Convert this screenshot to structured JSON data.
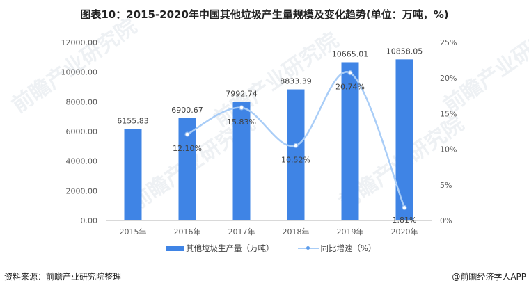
{
  "title": "图表10：2015-2020年中国其他垃圾产生量规模及变化趋势(单位：万吨，%)",
  "colors": {
    "bar": "#3f84e5",
    "line": "#a9cdf7",
    "marker_stroke": "#8fb8ee",
    "axis_text": "#595959",
    "gridline": "#d9d9d9"
  },
  "chart_data": {
    "type": "bar+line",
    "title": "图表10：2015-2020年中国其他垃圾产生量规模及变化趋势(单位：万吨，%)",
    "categories": [
      "2015年",
      "2016年",
      "2017年",
      "2018年",
      "2019年",
      "2020年"
    ],
    "series": [
      {
        "name": "其他垃圾生产量（万吨）",
        "type": "bar",
        "axis": "left",
        "values": [
          6155.83,
          6900.67,
          7992.74,
          8833.39,
          10665.01,
          10858.05
        ],
        "labels": [
          "6155.83",
          "6900.67",
          "7992.74",
          "8833.39",
          "10665.01",
          "10858.05"
        ]
      },
      {
        "name": "同比增速（%）",
        "type": "line",
        "axis": "right",
        "values": [
          null,
          12.1,
          15.83,
          10.52,
          20.74,
          1.81
        ],
        "labels": [
          "",
          "12.10%",
          "15.83%",
          "10.52%",
          "20.74%",
          "1.81%"
        ]
      }
    ],
    "y_left": {
      "ticks": [
        "0.00",
        "2000.00",
        "4000.00",
        "6000.00",
        "8000.00",
        "10000.00",
        "12000.00"
      ],
      "range": [
        0,
        12000
      ]
    },
    "y_right": {
      "ticks": [
        "0%",
        "5%",
        "10%",
        "15%",
        "20%",
        "25%"
      ],
      "range": [
        0,
        25
      ]
    },
    "legend_position": "bottom",
    "grid": false
  },
  "legend": {
    "bar_label": "其他垃圾生产量（万吨）",
    "line_label": "同比增速（%）"
  },
  "footer": {
    "source": "资料来源：前瞻产业研究院整理",
    "credit": "@前瞻经济学人APP"
  },
  "watermark": "前瞻产业研究院"
}
